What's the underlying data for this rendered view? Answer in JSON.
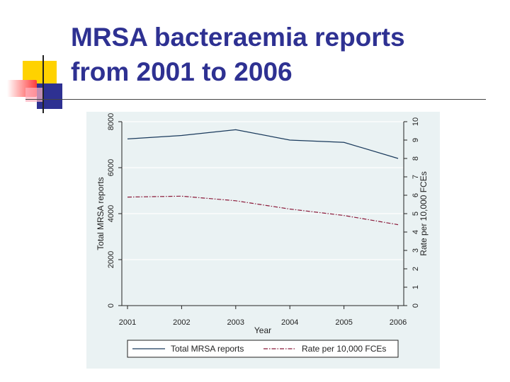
{
  "slide": {
    "title_line1": "MRSA bacteraemia reports",
    "title_line2": "from 2001 to 2006"
  },
  "colors": {
    "title": "#2e3192",
    "deco_yellow": "#ffd200",
    "deco_blue": "#2e3192",
    "deco_red": "#ff3b3b",
    "plot_bg": "#eaf2f3",
    "series_total": "#1a3a5c",
    "series_rate": "#8b1a3a"
  },
  "chart_data": {
    "type": "line",
    "x": [
      2001,
      2002,
      2003,
      2004,
      2005,
      2006
    ],
    "xlabel": "Year",
    "x_ticks": [
      "2001",
      "2002",
      "2003",
      "2004",
      "2005",
      "2006"
    ],
    "ylabel_left": "Total MRSA reports",
    "ylim_left": [
      0,
      8000
    ],
    "y_ticks_left": [
      "0",
      "2000",
      "4000",
      "6000",
      "8000"
    ],
    "ylabel_right": "Rate per 10,000 FCEs",
    "ylim_right": [
      0,
      10
    ],
    "y_ticks_right": [
      "0",
      "1",
      "2",
      "3",
      "4",
      "5",
      "6",
      "7",
      "8",
      "9",
      "10"
    ],
    "grid": true,
    "legend_position": "bottom",
    "series": [
      {
        "name": "Total MRSA reports",
        "axis": "left",
        "style": "solid",
        "values": [
          7250,
          7400,
          7650,
          7200,
          7100,
          6400
        ]
      },
      {
        "name": "Rate per 10,000 FCEs",
        "axis": "right",
        "style": "dashdot",
        "values": [
          5.9,
          5.95,
          5.7,
          5.25,
          4.9,
          4.4
        ]
      }
    ]
  }
}
